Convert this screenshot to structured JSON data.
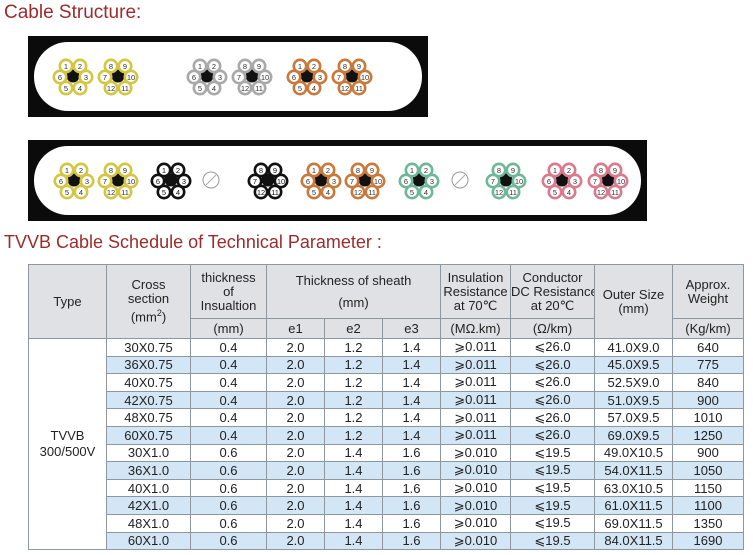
{
  "headings": {
    "structure": "Cable Structure:",
    "schedule": "TVVB Cable Schedule of Technical Parameter :"
  },
  "colors": {
    "heading": "#9c2b2b",
    "row_alt": "#d3e6f5",
    "header_bg": "#dfe1e4",
    "yellow": "#d4c640",
    "grey": "#a9a9a9",
    "orange": "#c97a3a",
    "black": "#111111",
    "green": "#6fb79a",
    "pink": "#d97a8f"
  },
  "cable1": {
    "groups": [
      {
        "color": "yellow",
        "left": [
          "1",
          "2",
          "6",
          "3",
          "5",
          "4"
        ],
        "right": [
          "8",
          "9",
          "7",
          "10",
          "12",
          "11"
        ]
      },
      {
        "color": "grey",
        "left": [
          "1",
          "2",
          "6",
          "3",
          "5",
          "4"
        ],
        "right": [
          "8",
          "9",
          "7",
          "10",
          "12",
          "11"
        ]
      },
      {
        "color": "orange",
        "left": [
          "1",
          "2",
          "6",
          "3",
          "5",
          "4"
        ],
        "right": [
          "8",
          "9",
          "7",
          "10",
          "12",
          "11"
        ]
      }
    ]
  },
  "cable2": {
    "groups": [
      {
        "color": "yellow",
        "left": [
          "1",
          "2",
          "6",
          "3",
          "5",
          "4"
        ],
        "right": [
          "8",
          "9",
          "7",
          "10",
          "12",
          "11"
        ]
      },
      {
        "color": "black",
        "left": [
          "1",
          "2",
          "6",
          "3",
          "5",
          "4"
        ]
      },
      {
        "color": "black",
        "right": [
          "8",
          "9",
          "7",
          "10",
          "12",
          "11"
        ]
      },
      {
        "color": "orange",
        "left": [
          "1",
          "2",
          "6",
          "3",
          "5",
          "4"
        ],
        "right": [
          "8",
          "9",
          "7",
          "10",
          "12",
          "11"
        ]
      },
      {
        "color": "green",
        "left": [
          "1",
          "2",
          "6",
          "3",
          "5",
          "4"
        ]
      },
      {
        "color": "green",
        "right": [
          "8",
          "9",
          "7",
          "10",
          "12",
          "11"
        ]
      },
      {
        "color": "pink",
        "left": [
          "1",
          "2",
          "6",
          "3",
          "5",
          "4"
        ],
        "right": [
          "8",
          "9",
          "7",
          "10",
          "12",
          "11"
        ]
      }
    ]
  },
  "table": {
    "header": {
      "type": "Type",
      "cross_section_l1": "Cross",
      "cross_section_l2": "section",
      "cross_section_l3": "(mm",
      "cross_section_sup": "2",
      "cross_section_end": ")",
      "thickness_l1": "thickness",
      "thickness_l2": "of",
      "thickness_l3": "Insualtion",
      "thickness_unit": "(mm)",
      "sheath_l1": "Thickness of sheath",
      "sheath_l2": "(mm)",
      "e1": "e1",
      "e2": "e2",
      "e3": "e3",
      "ins_res_l1": "Insulation",
      "ins_res_l2": "Resistance",
      "ins_res_l3": "at 70℃",
      "ins_res_unit": "(MΩ.km)",
      "dc_l1": "Conductor",
      "dc_l2": "DC Resistance",
      "dc_l3": "at 20℃",
      "dc_unit": "(Ω/km)",
      "outer_l1": "Outer Size",
      "outer_l2": "(mm)",
      "weight_l1": "Approx.",
      "weight_l2": "Weight",
      "weight_unit": "(Kg/km)"
    },
    "type_l1": "TVVB",
    "type_l2": "300/500V",
    "rows": [
      {
        "cross": "30X0.75",
        "ins": "0.4",
        "e1": "2.0",
        "e2": "1.2",
        "e3": "1.4",
        "res": "⩾0.011",
        "dc": "⩽26.0",
        "outer": "41.0X9.0",
        "weight": "640"
      },
      {
        "cross": "36X0.75",
        "ins": "0.4",
        "e1": "2.0",
        "e2": "1.2",
        "e3": "1.4",
        "res": "⩾0.011",
        "dc": "⩽26.0",
        "outer": "45.0X9.5",
        "weight": "775"
      },
      {
        "cross": "40X0.75",
        "ins": "0.4",
        "e1": "2.0",
        "e2": "1.2",
        "e3": "1.4",
        "res": "⩾0.011",
        "dc": "⩽26.0",
        "outer": "52.5X9.0",
        "weight": "840"
      },
      {
        "cross": "42X0.75",
        "ins": "0.4",
        "e1": "2.0",
        "e2": "1.2",
        "e3": "1.4",
        "res": "⩾0.011",
        "dc": "⩽26.0",
        "outer": "51.0X9.5",
        "weight": "900"
      },
      {
        "cross": "48X0.75",
        "ins": "0.4",
        "e1": "2.0",
        "e2": "1.2",
        "e3": "1.4",
        "res": "⩾0.011",
        "dc": "⩽26.0",
        "outer": "57.0X9.5",
        "weight": "1010"
      },
      {
        "cross": "60X0.75",
        "ins": "0.4",
        "e1": "2.0",
        "e2": "1.2",
        "e3": "1.4",
        "res": "⩾0.011",
        "dc": "⩽26.0",
        "outer": "69.0X9.5",
        "weight": "1250"
      },
      {
        "cross": "30X1.0",
        "ins": "0.6",
        "e1": "2.0",
        "e2": "1.4",
        "e3": "1.6",
        "res": "⩾0.010",
        "dc": "⩽19.5",
        "outer": "49.0X10.5",
        "weight": "900"
      },
      {
        "cross": "36X1.0",
        "ins": "0.6",
        "e1": "2.0",
        "e2": "1.4",
        "e3": "1.6",
        "res": "⩾0.010",
        "dc": "⩽19.5",
        "outer": "54.0X11.5",
        "weight": "1050"
      },
      {
        "cross": "40X1.0",
        "ins": "0.6",
        "e1": "2.0",
        "e2": "1.4",
        "e3": "1.6",
        "res": "⩾0.010",
        "dc": "⩽19.5",
        "outer": "63.0X10.5",
        "weight": "1150"
      },
      {
        "cross": "42X1.0",
        "ins": "0.6",
        "e1": "2.0",
        "e2": "1.4",
        "e3": "1.6",
        "res": "⩾0.010",
        "dc": "⩽19.5",
        "outer": "61.0X11.5",
        "weight": "1100"
      },
      {
        "cross": "48X1.0",
        "ins": "0.6",
        "e1": "2.0",
        "e2": "1.4",
        "e3": "1.6",
        "res": "⩾0.010",
        "dc": "⩽19.5",
        "outer": "69.0X11.5",
        "weight": "1350"
      },
      {
        "cross": "60X1.0",
        "ins": "0.6",
        "e1": "2.0",
        "e2": "1.4",
        "e3": "1.6",
        "res": "⩾0.010",
        "dc": "⩽19.5",
        "outer": "84.0X11.5",
        "weight": "1690"
      }
    ]
  }
}
